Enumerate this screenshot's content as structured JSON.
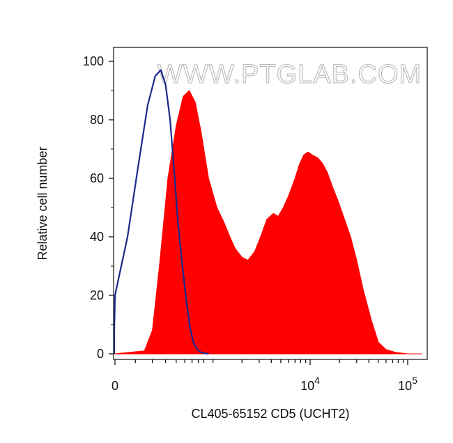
{
  "chart_data": {
    "type": "area",
    "title": "",
    "watermark": "WWW.PTGLAB.COM",
    "xlabel": "CL405-65152 CD5 (UCHT2)",
    "ylabel": "Relative cell number",
    "x_scale": "biexponential",
    "ylim": [
      0,
      100
    ],
    "y_ticks": [
      {
        "value": 0,
        "label": "0"
      },
      {
        "value": 20,
        "label": "20"
      },
      {
        "value": 40,
        "label": "40"
      },
      {
        "value": 60,
        "label": "60"
      },
      {
        "value": 80,
        "label": "80"
      },
      {
        "value": 100,
        "label": "100"
      }
    ],
    "x_ticks": [
      {
        "value": 0,
        "label": "0",
        "exp": ""
      },
      {
        "value": 10000,
        "label": "10",
        "exp": "4"
      },
      {
        "value": 100000,
        "label": "10",
        "exp": "5"
      }
    ],
    "series": [
      {
        "color": "#ff0000",
        "fill": true,
        "x": [
          -150,
          150,
          200,
          250,
          320,
          400,
          480,
          560,
          650,
          750,
          900,
          1100,
          1300,
          1500,
          1700,
          2000,
          2300,
          2700,
          3100,
          3600,
          4200,
          4700,
          5300,
          6000,
          7000,
          7800,
          8600,
          9500,
          10500,
          12000,
          13500,
          15000,
          17000,
          19500,
          22500,
          26000,
          30000,
          35000,
          42000,
          50000,
          60000,
          75000,
          100000,
          140000
        ],
        "y": [
          0,
          1,
          8,
          30,
          60,
          78,
          88,
          90,
          86,
          76,
          60,
          50,
          45,
          40,
          36,
          33,
          32,
          35,
          40,
          46,
          48,
          47,
          50,
          54,
          60,
          65,
          68,
          69,
          68,
          67,
          65,
          62,
          57,
          52,
          46,
          40,
          32,
          22,
          12,
          4,
          1.5,
          0.5,
          0,
          0
        ]
      },
      {
        "color": "#1a2a8c",
        "fill": false,
        "x": [
          -200,
          -120,
          -60,
          0,
          60,
          110,
          170,
          220,
          260,
          300,
          340,
          380,
          420,
          470,
          520,
          570,
          620,
          680,
          750,
          900
        ],
        "y": [
          0,
          2,
          8,
          20,
          40,
          62,
          85,
          95,
          97,
          92,
          80,
          62,
          45,
          30,
          18,
          9,
          4,
          1.5,
          0.5,
          0
        ]
      }
    ]
  }
}
